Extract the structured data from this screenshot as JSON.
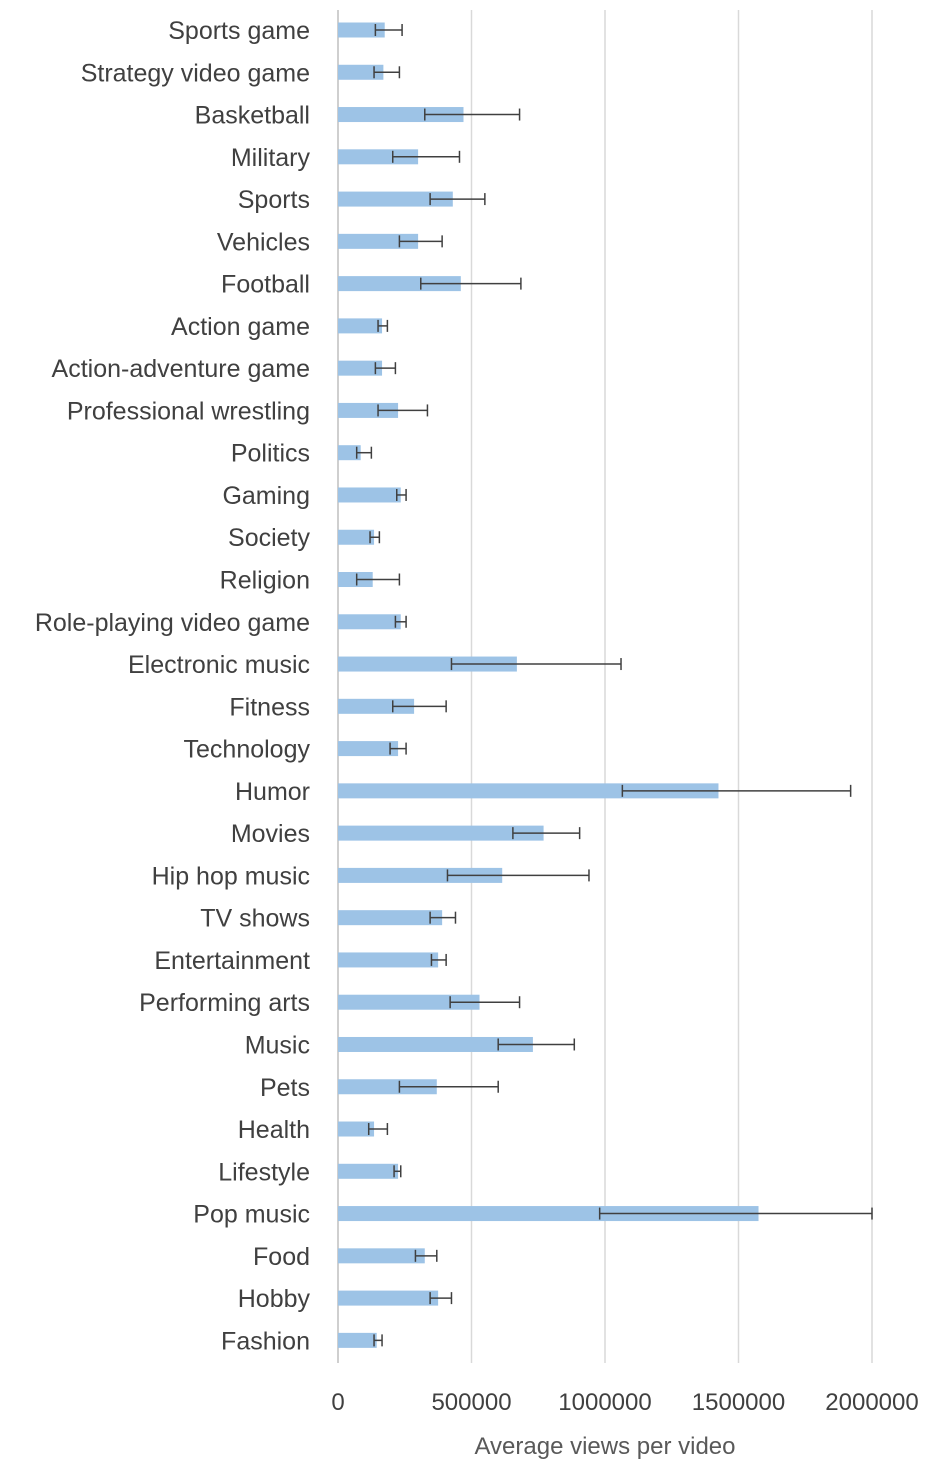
{
  "chart_data": {
    "type": "bar",
    "orientation": "horizontal",
    "xlabel": "Average views per video",
    "xlim": [
      0,
      2000000
    ],
    "x_ticks": [
      "0",
      "500000",
      "1000000",
      "1500000",
      "2000000"
    ],
    "grid": "vertical",
    "bar_color": "#9DC3E6",
    "error_color": "#404040",
    "categories": [
      "Sports game",
      "Strategy video game",
      "Basketball",
      "Military",
      "Sports",
      "Vehicles",
      "Football",
      "Action game",
      "Action-adventure game",
      "Professional wrestling",
      "Politics",
      "Gaming",
      "Society",
      "Religion",
      "Role-playing video game",
      "Electronic music",
      "Fitness",
      "Technology",
      "Humor",
      "Movies",
      "Hip hop music",
      "TV shows",
      "Entertainment",
      "Performing arts",
      "Music",
      "Pets",
      "Health",
      "Lifestyle",
      "Pop music",
      "Food",
      "Hobby",
      "Fashion"
    ],
    "values": [
      175000,
      170000,
      470000,
      300000,
      430000,
      300000,
      460000,
      165000,
      165000,
      225000,
      85000,
      235000,
      135000,
      130000,
      235000,
      670000,
      285000,
      225000,
      1425000,
      770000,
      615000,
      390000,
      375000,
      530000,
      730000,
      370000,
      135000,
      225000,
      1575000,
      325000,
      375000,
      145000
    ],
    "error_low": [
      140000,
      135000,
      325000,
      205000,
      345000,
      230000,
      310000,
      150000,
      140000,
      150000,
      70000,
      220000,
      120000,
      70000,
      215000,
      425000,
      205000,
      195000,
      1065000,
      655000,
      410000,
      345000,
      350000,
      420000,
      600000,
      230000,
      115000,
      210000,
      980000,
      290000,
      345000,
      135000
    ],
    "error_high": [
      240000,
      230000,
      680000,
      455000,
      550000,
      390000,
      685000,
      185000,
      215000,
      335000,
      125000,
      255000,
      155000,
      230000,
      255000,
      1060000,
      405000,
      255000,
      1920000,
      905000,
      940000,
      440000,
      405000,
      680000,
      885000,
      600000,
      185000,
      235000,
      2000000,
      370000,
      425000,
      165000
    ]
  }
}
